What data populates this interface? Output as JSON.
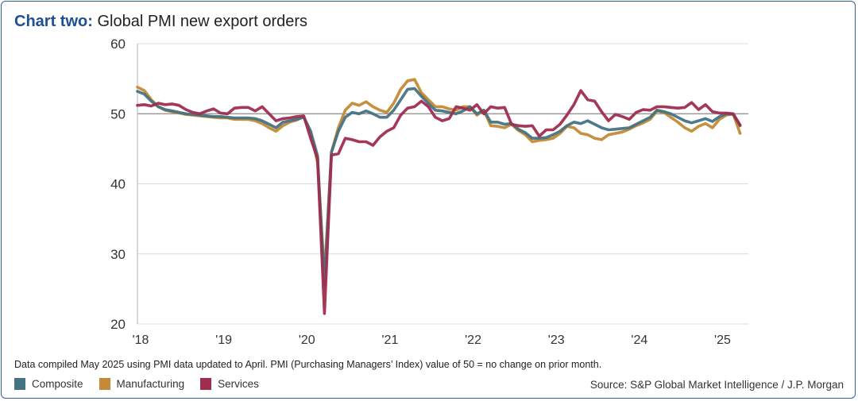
{
  "title": {
    "prefix": "Chart two:",
    "text": "Global PMI new export orders"
  },
  "note": "Data compiled May 2025 using PMI data updated to April. PMI (Purchasing Managers’ Index) value of 50 = no change on prior month.",
  "source": "Source: S&P Global Market Intelligence / J.P. Morgan",
  "chart_data": {
    "type": "line",
    "title": "Global PMI new export orders",
    "xlabel": "",
    "ylabel": "",
    "x_start": "2018-01",
    "x_end": "2025-04",
    "frequency": "monthly",
    "xticks": [
      "'18",
      "'19",
      "'20",
      "'21",
      "'22",
      "'23",
      "'24",
      "'25"
    ],
    "yticks": [
      20,
      30,
      40,
      50,
      60
    ],
    "ylim": [
      20,
      60
    ],
    "reference_line": 50,
    "grid": true,
    "legend_placement": "bottom-left",
    "series": [
      {
        "name": "Manufacturing",
        "color": "#c48a35",
        "values": [
          53.8,
          53.3,
          52.0,
          51.0,
          50.5,
          50.3,
          50.1,
          49.9,
          49.8,
          49.7,
          49.6,
          49.5,
          49.4,
          49.4,
          49.2,
          49.2,
          49.2,
          49.0,
          48.6,
          48.0,
          47.5,
          48.3,
          48.8,
          49.1,
          49.6,
          47.5,
          43.0,
          27.0,
          44.5,
          48.0,
          50.5,
          51.5,
          51.2,
          51.7,
          51.0,
          50.5,
          50.2,
          51.5,
          53.5,
          54.7,
          54.9,
          53.0,
          52.0,
          51.0,
          51.0,
          50.7,
          50.5,
          51.0,
          51.0,
          49.8,
          50.5,
          48.3,
          48.2,
          48.0,
          48.5,
          47.6,
          47.0,
          46.0,
          46.2,
          46.3,
          46.5,
          47.2,
          48.2,
          48.0,
          47.2,
          47.0,
          46.5,
          46.3,
          47.0,
          47.2,
          47.4,
          47.8,
          48.3,
          48.7,
          49.2,
          50.4,
          50.2,
          49.5,
          48.8,
          48.0,
          47.5,
          48.2,
          48.6,
          48.0,
          49.2,
          49.8,
          50.0,
          47.2
        ]
      },
      {
        "name": "Composite",
        "color": "#457383",
        "values": [
          53.2,
          52.8,
          51.8,
          51.0,
          50.6,
          50.4,
          50.2,
          50.0,
          49.9,
          49.8,
          49.7,
          49.6,
          49.6,
          49.5,
          49.4,
          49.4,
          49.4,
          49.3,
          49.0,
          48.5,
          48.0,
          48.8,
          49.0,
          49.2,
          49.5,
          47.5,
          44.0,
          25.5,
          44.5,
          47.5,
          49.5,
          50.2,
          50.0,
          50.4,
          50.0,
          49.5,
          49.5,
          50.5,
          52.0,
          53.5,
          53.6,
          52.5,
          51.5,
          50.5,
          50.4,
          50.2,
          50.0,
          50.4,
          51.0,
          50.0,
          50.5,
          48.8,
          48.8,
          48.5,
          48.6,
          47.8,
          47.3,
          46.5,
          46.5,
          46.6,
          47.0,
          47.5,
          48.3,
          48.8,
          48.6,
          49.0,
          48.5,
          48.0,
          47.7,
          47.8,
          47.9,
          48.0,
          48.5,
          49.0,
          49.5,
          50.5,
          50.3,
          50.0,
          49.5,
          49.0,
          48.7,
          49.0,
          49.3,
          48.9,
          49.6,
          50.0,
          49.9,
          48.3
        ]
      },
      {
        "name": "Services",
        "color": "#9e2d4e",
        "values": [
          51.2,
          51.3,
          51.1,
          51.5,
          51.3,
          51.4,
          51.2,
          50.6,
          50.2,
          50.0,
          50.4,
          50.7,
          50.1,
          50.0,
          50.8,
          50.9,
          50.9,
          50.4,
          51.0,
          50.0,
          49.0,
          49.3,
          49.4,
          49.6,
          49.7,
          46.5,
          43.6,
          21.5,
          44.1,
          44.3,
          46.5,
          46.3,
          46.0,
          46.0,
          45.5,
          46.7,
          47.5,
          48.0,
          49.8,
          50.8,
          51.0,
          51.8,
          51.0,
          49.5,
          49.0,
          49.3,
          51.0,
          50.8,
          50.5,
          51.3,
          50.0,
          51.0,
          50.8,
          50.9,
          48.5,
          48.3,
          48.2,
          48.3,
          46.8,
          47.7,
          47.7,
          48.5,
          49.8,
          51.3,
          53.3,
          52.0,
          51.8,
          50.3,
          49.0,
          49.9,
          49.6,
          49.2,
          50.2,
          50.6,
          50.5,
          51.0,
          51.0,
          50.9,
          50.8,
          50.9,
          51.6,
          50.6,
          51.3,
          50.3,
          50.1,
          50.1,
          50.0,
          48.4
        ]
      }
    ]
  }
}
